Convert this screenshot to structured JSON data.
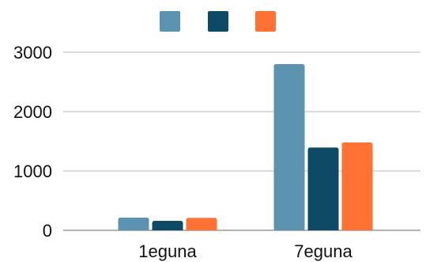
{
  "chart_data": {
    "type": "bar",
    "categories": [
      "1eguna",
      "7eguna"
    ],
    "series": [
      {
        "color": "#5b93b1",
        "values": [
          215,
          2800
        ]
      },
      {
        "color": "#0e4a66",
        "values": [
          160,
          1395
        ]
      },
      {
        "color": "#ff7233",
        "values": [
          210,
          1480
        ]
      }
    ],
    "ylim": [
      0,
      3000
    ],
    "yticks": [
      0,
      1000,
      2000,
      3000
    ],
    "grid": true,
    "legend_position": "top-center"
  }
}
